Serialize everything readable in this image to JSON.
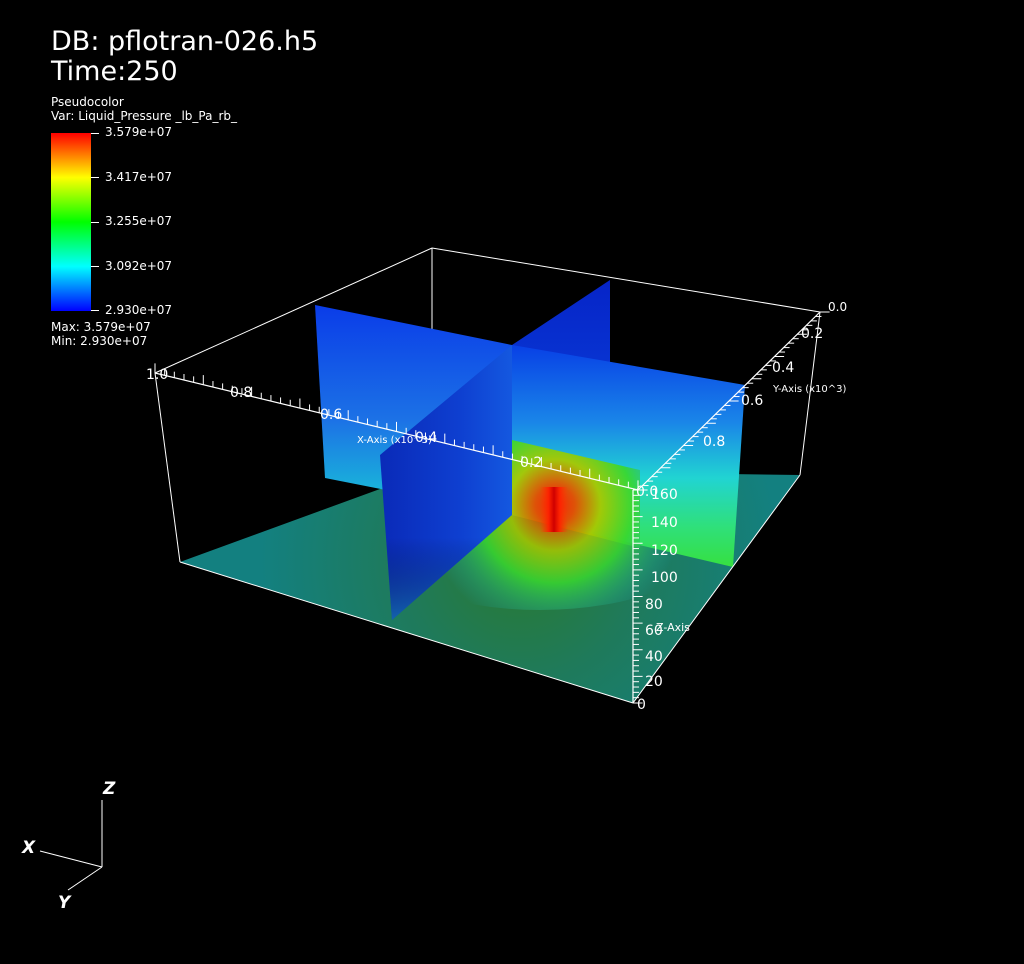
{
  "header": {
    "db_label": "DB: pflotran-026.h5",
    "time_label": "Time:250"
  },
  "legend": {
    "plot_type": "Pseudocolor",
    "variable": "Var: Liquid_Pressure _lb_Pa_rb_",
    "ticks": [
      "3.579e+07",
      "3.417e+07",
      "3.255e+07",
      "3.092e+07",
      "2.930e+07"
    ],
    "max_label": "Max:  3.579e+07",
    "min_label": "Min:  2.930e+07",
    "colors": [
      "#0000ff",
      "#00ffff",
      "#00ff00",
      "#ffff00",
      "#ff0000"
    ]
  },
  "axes": {
    "x_title": "X-Axis (x10^3)",
    "y_title": "Y-Axis (x10^3)",
    "z_title": "Z-Axis",
    "x_ticks": [
      "1.0",
      "0.8",
      "0.6",
      "0.4",
      "0.2",
      "0.0"
    ],
    "y_ticks": [
      "0.0",
      "0.2",
      "0.4",
      "0.6",
      "0.8"
    ],
    "z_ticks": [
      "160",
      "140",
      "120",
      "100",
      "80",
      "60",
      "40",
      "20",
      "0"
    ]
  },
  "triad": {
    "x": "X",
    "y": "Y",
    "z": "Z"
  }
}
